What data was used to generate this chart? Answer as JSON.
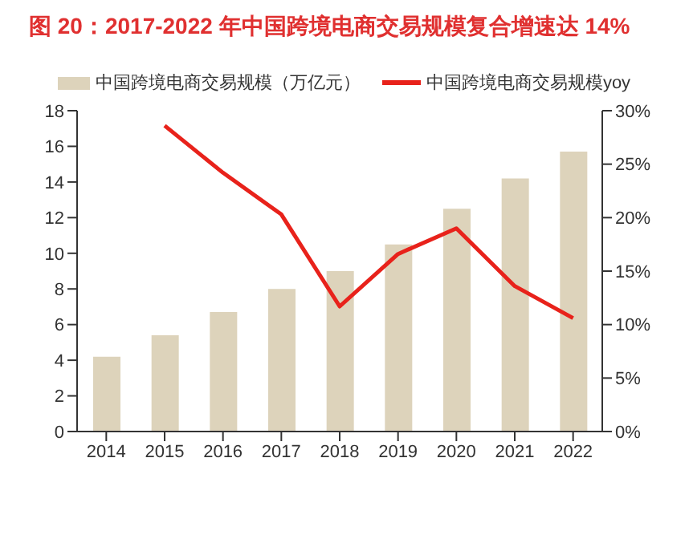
{
  "chart_data": {
    "type": "bar",
    "title": "图 20：2017-2022 年中国跨境电商交易规模复合增速达 14%",
    "categories": [
      "2014",
      "2015",
      "2016",
      "2017",
      "2018",
      "2019",
      "2020",
      "2021",
      "2022"
    ],
    "series": [
      {
        "name": "中国跨境电商交易规模（万亿元）",
        "color": "#ddd3bb",
        "values": [
          4.2,
          5.4,
          6.7,
          8.0,
          9.0,
          10.5,
          12.5,
          14.2,
          15.7
        ]
      },
      {
        "name": "中国跨境电商交易规模yoy",
        "type": "line",
        "axis": "y2",
        "color": "#e8221b",
        "values": [
          null,
          28.6,
          24.2,
          20.3,
          11.7,
          16.6,
          19.0,
          13.6,
          10.6
        ]
      }
    ],
    "ylim": [
      0,
      18
    ],
    "yticks": [
      0,
      2,
      4,
      6,
      8,
      10,
      12,
      14,
      16,
      18
    ],
    "y2lim": [
      0,
      30
    ],
    "y2ticks": [
      {
        "value": 0,
        "label": "0%"
      },
      {
        "value": 5,
        "label": "5%"
      },
      {
        "value": 10,
        "label": "10%"
      },
      {
        "value": 15,
        "label": "15%"
      },
      {
        "value": 20,
        "label": "20%"
      },
      {
        "value": 25,
        "label": "25%"
      },
      {
        "value": 30,
        "label": "30%"
      }
    ],
    "legend": "top",
    "marker": "none"
  }
}
